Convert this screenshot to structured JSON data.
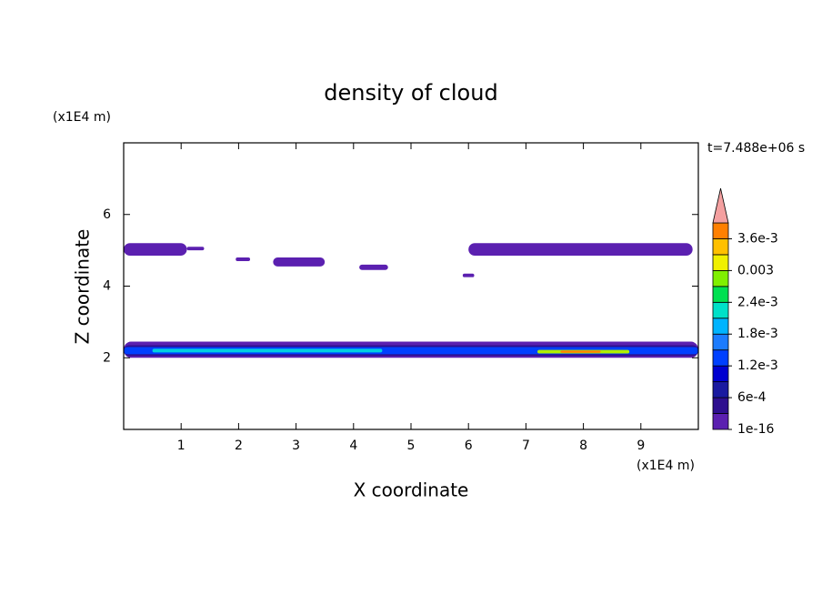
{
  "chart_data": {
    "type": "contour",
    "title": "density of cloud",
    "xlabel": "X coordinate",
    "ylabel": "Z coordinate",
    "x_unit": "(x1E4 m)",
    "y_unit": "(x1E4 m)",
    "annotation": "t=7.488e+06 s",
    "xlim": [
      0,
      10
    ],
    "ylim": [
      0,
      8
    ],
    "xticks": [
      1,
      2,
      3,
      4,
      5,
      6,
      7,
      8,
      9
    ],
    "yticks": [
      2,
      4,
      6
    ],
    "patches": [
      {
        "x": [
          0,
          1.1
        ],
        "z": [
          4.85,
          5.2
        ],
        "color": "#5b20b0"
      },
      {
        "x": [
          1.1,
          1.4
        ],
        "z": [
          5.0,
          5.1
        ],
        "color": "#5b20b0"
      },
      {
        "x": [
          1.95,
          2.2
        ],
        "z": [
          4.7,
          4.8
        ],
        "color": "#5b20b0"
      },
      {
        "x": [
          2.6,
          3.5
        ],
        "z": [
          4.55,
          4.8
        ],
        "color": "#5b20b0"
      },
      {
        "x": [
          4.1,
          4.6
        ],
        "z": [
          4.45,
          4.6
        ],
        "color": "#5b20b0"
      },
      {
        "x": [
          5.9,
          6.1
        ],
        "z": [
          4.25,
          4.35
        ],
        "color": "#5b20b0"
      },
      {
        "x": [
          6.0,
          9.9
        ],
        "z": [
          4.85,
          5.2
        ],
        "color": "#5b20b0"
      },
      {
        "x": [
          0,
          10
        ],
        "z": [
          2.0,
          2.45
        ],
        "color": "#5b20b0"
      },
      {
        "x": [
          0,
          10
        ],
        "z": [
          2.05,
          2.35
        ],
        "color": "#2e0f8f"
      },
      {
        "x": [
          0,
          10
        ],
        "z": [
          2.1,
          2.3
        ],
        "color": "#0040ff"
      },
      {
        "x": [
          0.5,
          4.5
        ],
        "z": [
          2.15,
          2.25
        ],
        "color": "#00d0e0"
      },
      {
        "x": [
          7.2,
          8.8
        ],
        "z": [
          2.12,
          2.22
        ],
        "color": "#b0f000"
      },
      {
        "x": [
          7.6,
          8.3
        ],
        "z": [
          2.14,
          2.2
        ],
        "color": "#ff8000"
      }
    ],
    "colorbar": {
      "levels": [
        0,
        0.0003,
        0.0006,
        0.0009,
        0.0012,
        0.0015,
        0.0018,
        0.0021,
        0.0024,
        0.0027,
        0.003,
        0.0033,
        0.0036,
        0.0039
      ],
      "colors": [
        "#5b20b0",
        "#2e0f8f",
        "#1a1aa0",
        "#0000d0",
        "#0040ff",
        "#1c7cff",
        "#00b4ff",
        "#00e0c8",
        "#00e050",
        "#80f000",
        "#f0f000",
        "#ffc000",
        "#ff8000"
      ],
      "extend_color": "#f4a0a0",
      "ticks": [
        {
          "value": 1e-16,
          "label": "1e-16"
        },
        {
          "value": 0.0006,
          "label": "6e-4"
        },
        {
          "value": 0.0012,
          "label": "1.2e-3"
        },
        {
          "value": 0.0018,
          "label": "1.8e-3"
        },
        {
          "value": 0.0024,
          "label": "2.4e-3"
        },
        0.003,
        {
          "value": 0.0036,
          "label": "3.6e-3"
        }
      ]
    }
  }
}
